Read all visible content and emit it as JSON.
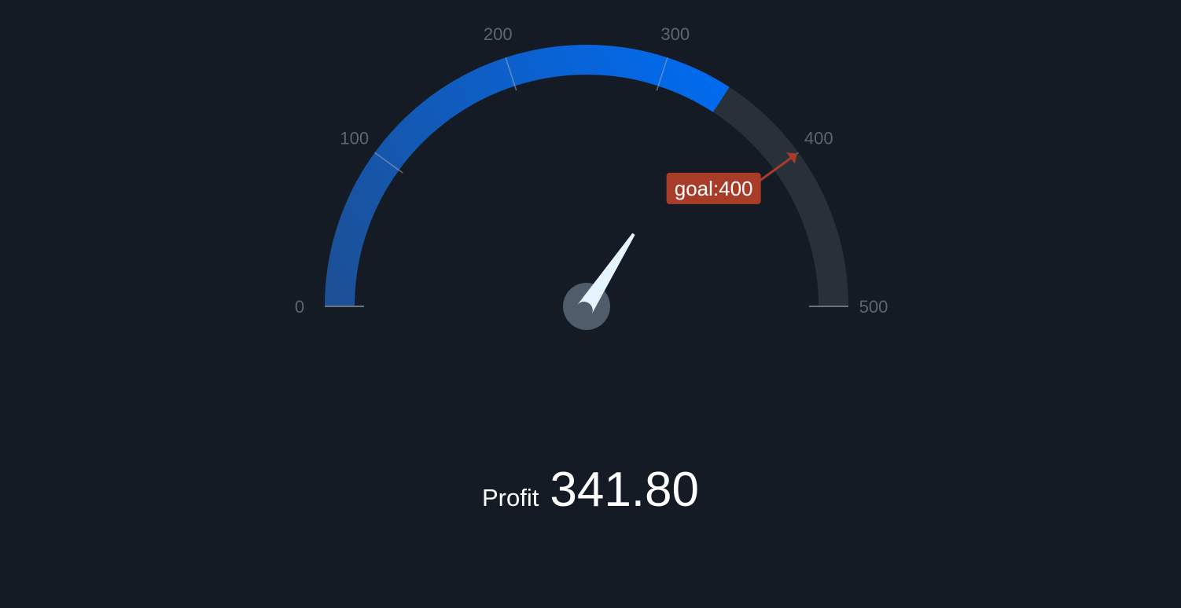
{
  "chart_data": {
    "type": "gauge",
    "label": "Profit",
    "value": 341.8,
    "value_display": "341.80",
    "min": 0,
    "max": 500,
    "ticks": [
      0,
      100,
      200,
      300,
      400,
      500
    ],
    "tick_labels": [
      "0",
      "100",
      "200",
      "300",
      "400",
      "500"
    ],
    "goal": {
      "value": 400,
      "label": "goal:400"
    },
    "colors": {
      "background": "#141b24",
      "track": "#283039",
      "fill_start": "#1d4f93",
      "fill_end": "#006bf0",
      "goal": "#a83c29",
      "needle": "#e6f4ff",
      "pivot": "#4e5d69",
      "tick_label": "#5c6570",
      "value_text": "#ffffff"
    }
  }
}
